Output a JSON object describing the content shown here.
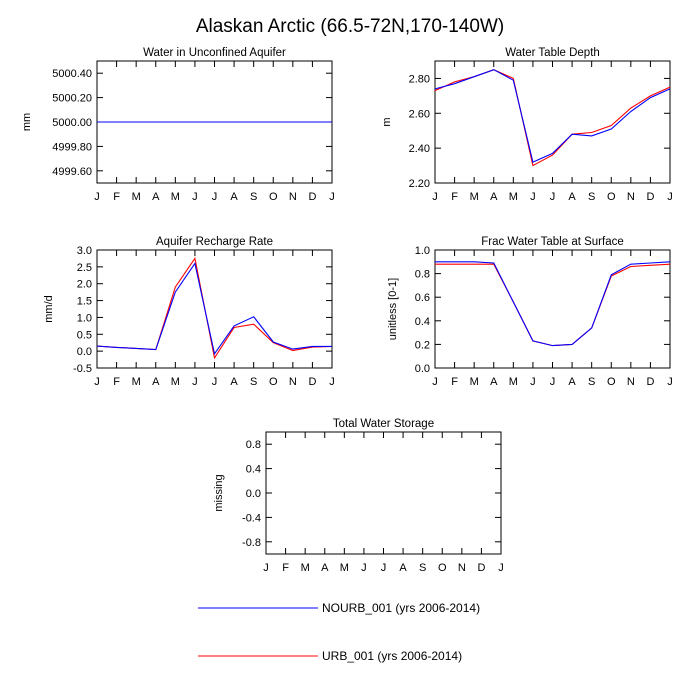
{
  "title": "Alaskan Arctic (66.5-72N,170-140W)",
  "months": [
    "J",
    "F",
    "M",
    "A",
    "M",
    "J",
    "J",
    "A",
    "S",
    "O",
    "N",
    "D",
    "J"
  ],
  "colors": {
    "NOURB_001": "#0000ff",
    "URB_001": "#ff0000"
  },
  "legend": {
    "items": [
      {
        "label": "NOURB_001 (yrs 2006-2014)",
        "color": "#0000ff"
      },
      {
        "label": "URB_001 (yrs 2006-2014)",
        "color": "#ff0000"
      }
    ]
  },
  "chart_data": [
    {
      "type": "line",
      "title": "Water in Unconfined Aquifer",
      "ylabel": "mm",
      "ylim": [
        4999.5,
        5000.5
      ],
      "yticks": [
        4999.6,
        4999.8,
        5000.0,
        5000.2,
        5000.4
      ],
      "ytick_labels": [
        "4999.60",
        "4999.80",
        "5000.00",
        "5000.20",
        "5000.40"
      ],
      "x": [
        0,
        1,
        2,
        3,
        4,
        5,
        6,
        7,
        8,
        9,
        10,
        11,
        12
      ],
      "series": [
        {
          "name": "NOURB_001",
          "values": [
            5000,
            5000,
            5000,
            5000,
            5000,
            5000,
            5000,
            5000,
            5000,
            5000,
            5000,
            5000,
            5000
          ]
        },
        {
          "name": "URB_001",
          "values": [
            5000,
            5000,
            5000,
            5000,
            5000,
            5000,
            5000,
            5000,
            5000,
            5000,
            5000,
            5000,
            5000
          ]
        }
      ]
    },
    {
      "type": "line",
      "title": "Water Table Depth",
      "ylabel": "m",
      "ylim": [
        2.2,
        2.9
      ],
      "yticks": [
        2.2,
        2.4,
        2.6,
        2.8
      ],
      "ytick_labels": [
        "2.20",
        "2.40",
        "2.60",
        "2.80"
      ],
      "x": [
        0,
        1,
        2,
        3,
        4,
        5,
        6,
        7,
        8,
        9,
        10,
        11,
        12
      ],
      "series": [
        {
          "name": "NOURB_001",
          "values": [
            2.74,
            2.77,
            2.81,
            2.85,
            2.79,
            2.32,
            2.37,
            2.48,
            2.47,
            2.51,
            2.61,
            2.69,
            2.74
          ]
        },
        {
          "name": "URB_001",
          "values": [
            2.73,
            2.78,
            2.81,
            2.85,
            2.8,
            2.3,
            2.36,
            2.48,
            2.49,
            2.53,
            2.63,
            2.7,
            2.75
          ]
        }
      ]
    },
    {
      "type": "line",
      "title": "Aquifer Recharge Rate",
      "ylabel": "mm/d",
      "ylim": [
        -0.5,
        3.0
      ],
      "yticks": [
        -0.5,
        0.0,
        0.5,
        1.0,
        1.5,
        2.0,
        2.5,
        3.0
      ],
      "ytick_labels": [
        "-0.5",
        "0.0",
        "0.5",
        "1.0",
        "1.5",
        "2.0",
        "2.5",
        "3.0"
      ],
      "x": [
        0,
        1,
        2,
        3,
        4,
        5,
        6,
        7,
        8,
        9,
        10,
        11,
        12
      ],
      "series": [
        {
          "name": "NOURB_001",
          "values": [
            0.15,
            0.11,
            0.08,
            0.05,
            1.75,
            2.6,
            -0.08,
            0.75,
            1.02,
            0.27,
            0.06,
            0.14,
            0.14
          ]
        },
        {
          "name": "URB_001",
          "values": [
            0.15,
            0.11,
            0.08,
            0.05,
            1.9,
            2.75,
            -0.2,
            0.7,
            0.8,
            0.25,
            0.02,
            0.12,
            0.14
          ]
        }
      ]
    },
    {
      "type": "line",
      "title": "Frac Water Table at Surface",
      "ylabel": "unitless [0-1]",
      "ylim": [
        0.0,
        1.0
      ],
      "yticks": [
        0.0,
        0.2,
        0.4,
        0.6,
        0.8,
        1.0
      ],
      "ytick_labels": [
        "0.0",
        "0.2",
        "0.4",
        "0.6",
        "0.8",
        "1.0"
      ],
      "x": [
        0,
        1,
        2,
        3,
        4,
        5,
        6,
        7,
        8,
        9,
        10,
        11,
        12
      ],
      "series": [
        {
          "name": "NOURB_001",
          "values": [
            0.9,
            0.9,
            0.9,
            0.89,
            0.56,
            0.23,
            0.19,
            0.2,
            0.34,
            0.79,
            0.88,
            0.89,
            0.9
          ]
        },
        {
          "name": "URB_001",
          "values": [
            0.88,
            0.88,
            0.88,
            0.88,
            0.56,
            0.23,
            0.19,
            0.2,
            0.34,
            0.78,
            0.86,
            0.87,
            0.88
          ]
        }
      ]
    },
    {
      "type": "line",
      "title": "Total Water Storage",
      "ylabel": "missing",
      "ylim": [
        -1.0,
        1.0
      ],
      "yticks": [
        -0.8,
        -0.4,
        0.0,
        0.4,
        0.8
      ],
      "ytick_labels": [
        "-0.8",
        "-0.4",
        "0.0",
        "0.4",
        "0.8"
      ],
      "x": [
        0,
        1,
        2,
        3,
        4,
        5,
        6,
        7,
        8,
        9,
        10,
        11,
        12
      ],
      "series": []
    }
  ]
}
